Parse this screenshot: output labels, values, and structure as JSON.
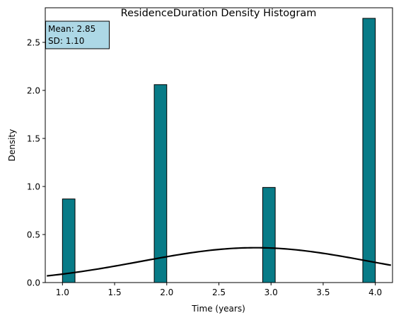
{
  "chart_data": {
    "type": "bar",
    "title": "ResidenceDuration Density Histogram",
    "xlabel": "Time (years)",
    "ylabel": "Density",
    "xlim": [
      0.835,
      4.165
    ],
    "ylim": [
      0,
      2.86
    ],
    "xticks": [
      1.0,
      1.5,
      2.0,
      2.5,
      3.0,
      3.5,
      4.0
    ],
    "xtick_labels": [
      "1.0",
      "1.5",
      "2.0",
      "2.5",
      "3.0",
      "3.5",
      "4.0"
    ],
    "yticks": [
      0.0,
      0.5,
      1.0,
      1.5,
      2.0,
      2.5
    ],
    "ytick_labels": [
      "0.0",
      "0.5",
      "1.0",
      "1.5",
      "2.0",
      "2.5"
    ],
    "bin_width": 0.12,
    "bars": [
      {
        "x_left": 1.0,
        "value": 0.87
      },
      {
        "x_left": 1.88,
        "value": 2.06
      },
      {
        "x_left": 2.92,
        "value": 0.99
      },
      {
        "x_left": 3.88,
        "value": 2.75
      }
    ],
    "normal_curve": {
      "mean": 2.85,
      "sd": 1.1,
      "x_range": [
        0.85,
        4.15
      ]
    },
    "stats_box": {
      "mean_text": "Mean: 2.85",
      "sd_text": "SD: 1.10",
      "placement": "top-left"
    },
    "grid": false,
    "colors": {
      "bar_fill": "#087b87",
      "bar_edge": "#000000",
      "curve": "#000000",
      "stats_box_fill": "#add8e6"
    }
  }
}
